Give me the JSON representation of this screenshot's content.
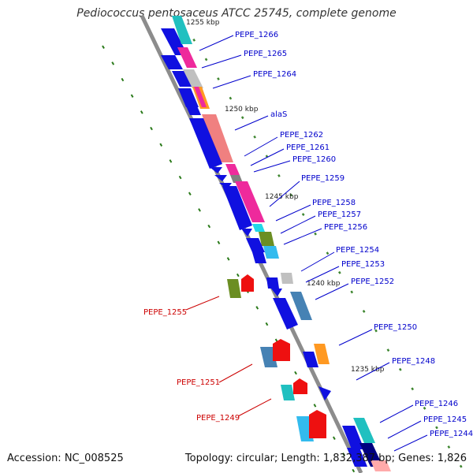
{
  "title": "Pediococcus pentosaceus ATCC 25745, complete genome",
  "accession": "Accession: NC_008525",
  "topology": "Topology: circular; Length: 1,832,387 bp; Genes: 1,826",
  "colors": {
    "backbone": "#8c8c8c",
    "forward_label": "#0000cc",
    "reverse_label": "#cc0000",
    "tick": "#2a7a1a"
  },
  "kbp_labels": [
    "1255 kbp",
    "1250 kbp",
    "1245 kbp",
    "1240 kbp",
    "1235 kbp"
  ],
  "forward_genes": [
    "PEPE_1266",
    "PEPE_1265",
    "PEPE_1264",
    "alaS",
    "PEPE_1262",
    "PEPE_1261",
    "PEPE_1260",
    "PEPE_1259",
    "PEPE_1258",
    "PEPE_1257",
    "PEPE_1256",
    "PEPE_1254",
    "PEPE_1253",
    "PEPE_1252",
    "PEPE_1250",
    "PEPE_1248",
    "PEPE_1246",
    "PEPE_1245",
    "PEPE_1244"
  ],
  "reverse_genes": [
    "PEPE_1255",
    "PEPE_1251",
    "PEPE_1249"
  ]
}
